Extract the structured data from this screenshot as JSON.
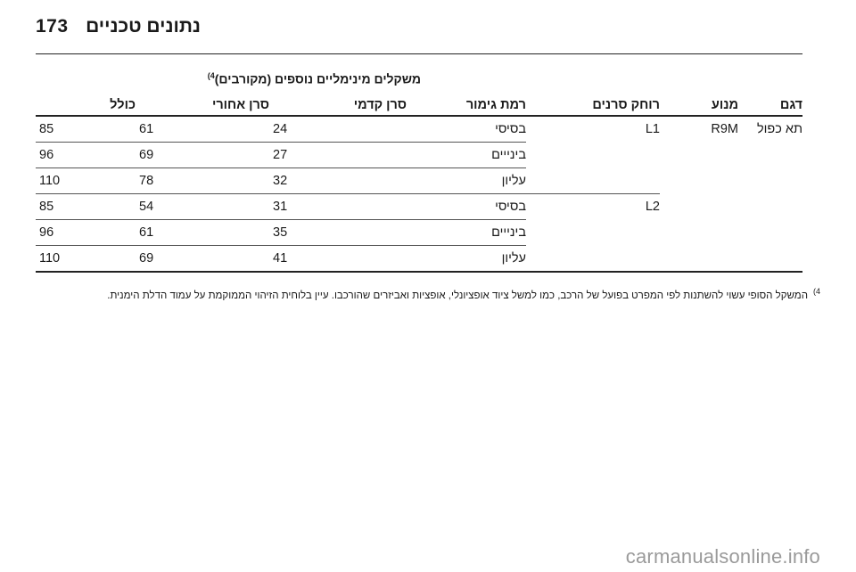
{
  "header": {
    "page_number": "173",
    "section_title": "נתונים טכניים"
  },
  "table": {
    "group_header": "משקלים מינימליים נוספים (מקורבים)",
    "group_header_ref": "4)",
    "columns": [
      "דגם",
      "מנוע",
      "רוחק סרנים",
      "רמת גימור",
      "סרן קדמי",
      "סרן אחורי",
      "כולל"
    ],
    "cells": {
      "model": "תא כפול",
      "engine": "R9M",
      "wheelbase_1": "L1",
      "wheelbase_2": "L2",
      "rows": [
        {
          "trim": "בסיסי",
          "front": "24",
          "rear": "61",
          "total": "85"
        },
        {
          "trim": "בינייים",
          "front": "27",
          "rear": "69",
          "total": "96"
        },
        {
          "trim": "עליון",
          "front": "32",
          "rear": "78",
          "total": "110"
        },
        {
          "trim": "בסיסי",
          "front": "31",
          "rear": "54",
          "total": "85"
        },
        {
          "trim": "בינייים",
          "front": "35",
          "rear": "61",
          "total": "96"
        },
        {
          "trim": "עליון",
          "front": "41",
          "rear": "69",
          "total": "110"
        }
      ]
    }
  },
  "footnote": {
    "mark": "(4",
    "text": "המשקל הסופי עשוי להשתנות לפי המפרט בפועל של הרכב, כמו למשל ציוד אופציונלי, אופציות ואביזרים שהורכבו. עיין בלוחית הזיהוי הממוקמת על עמוד הדלת הימנית."
  },
  "watermark": "carmanualsonline.info"
}
